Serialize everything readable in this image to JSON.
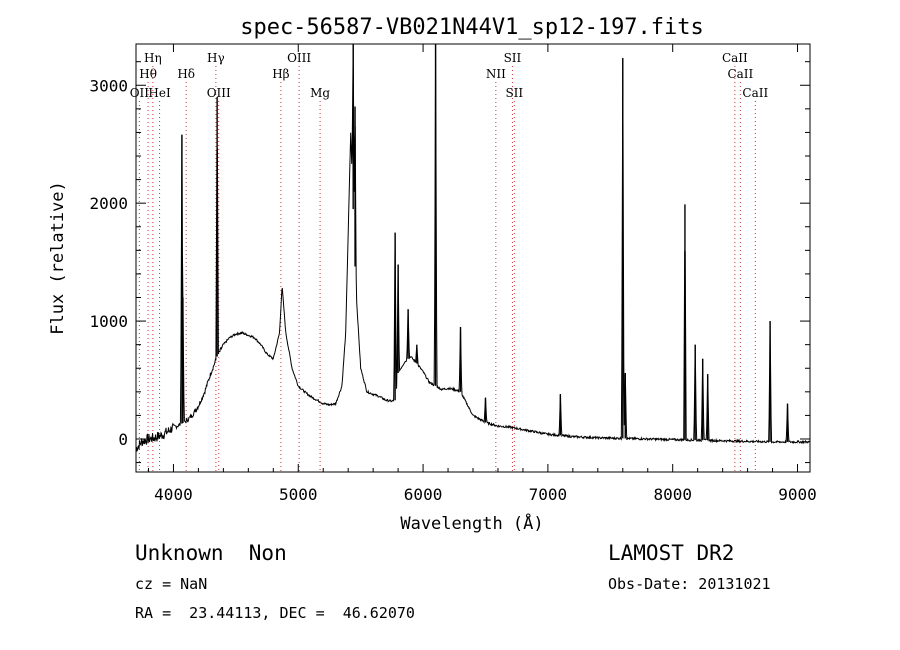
{
  "chart_data": {
    "type": "line",
    "title": "spec-56587-VB021N44V1_sp12-197.fits",
    "xlabel": "Wavelength (Å)",
    "ylabel": "Flux (relative)",
    "xlim": [
      3700,
      9100
    ],
    "ylim": [
      -280,
      3350
    ],
    "x_ticks": [
      4000,
      5000,
      6000,
      7000,
      8000,
      9000
    ],
    "y_ticks": [
      0,
      1000,
      2000,
      3000
    ],
    "grid": false,
    "line_color": "#000000",
    "marker_color": "#d03030",
    "spectrum_continuum": {
      "x": [
        3700,
        3750,
        3800,
        3850,
        3900,
        3950,
        4000,
        4050,
        4100,
        4150,
        4200,
        4250,
        4300,
        4350,
        4400,
        4450,
        4500,
        4550,
        4600,
        4650,
        4700,
        4750,
        4800,
        4850,
        4870,
        4900,
        4950,
        5000,
        5050,
        5100,
        5150,
        5200,
        5250,
        5300,
        5350,
        5380,
        5420,
        5460,
        5500,
        5550,
        5600,
        5650,
        5700,
        5750,
        5780,
        5800,
        5850,
        5900,
        5950,
        6000,
        6050,
        6100,
        6150,
        6200,
        6250,
        6300,
        6350,
        6400,
        6500,
        6600,
        6700,
        6800,
        6900,
        7000,
        7200,
        7400,
        7600,
        7800,
        8000,
        8200,
        8400,
        8600,
        8800,
        9000,
        9100
      ],
      "y": [
        -80,
        -20,
        0,
        10,
        30,
        60,
        100,
        120,
        150,
        200,
        280,
        400,
        560,
        700,
        800,
        860,
        890,
        900,
        880,
        860,
        800,
        720,
        680,
        900,
        1300,
        900,
        600,
        450,
        400,
        360,
        330,
        300,
        290,
        300,
        450,
        900,
        2600,
        1300,
        600,
        400,
        380,
        360,
        330,
        320,
        330,
        560,
        650,
        700,
        640,
        570,
        480,
        450,
        420,
        430,
        420,
        400,
        300,
        200,
        140,
        110,
        100,
        80,
        60,
        40,
        20,
        10,
        5,
        0,
        -5,
        -10,
        -15,
        -20,
        -25,
        -25,
        -25
      ]
    },
    "emission_peaks": [
      {
        "x": 4068,
        "y": 2580
      },
      {
        "x": 4076,
        "y": 1200
      },
      {
        "x": 4350,
        "y": 2900
      },
      {
        "x": 5440,
        "y": 3350
      },
      {
        "x": 5455,
        "y": 2820
      },
      {
        "x": 5776,
        "y": 1750
      },
      {
        "x": 5800,
        "y": 1480
      },
      {
        "x": 5880,
        "y": 1100
      },
      {
        "x": 5950,
        "y": 800
      },
      {
        "x": 6100,
        "y": 3350
      },
      {
        "x": 6300,
        "y": 950
      },
      {
        "x": 6500,
        "y": 350
      },
      {
        "x": 7100,
        "y": 380
      },
      {
        "x": 7600,
        "y": 3230
      },
      {
        "x": 7620,
        "y": 560
      },
      {
        "x": 8098,
        "y": 1990
      },
      {
        "x": 8180,
        "y": 800
      },
      {
        "x": 8240,
        "y": 680
      },
      {
        "x": 8280,
        "y": 550
      },
      {
        "x": 8780,
        "y": 1000
      },
      {
        "x": 8920,
        "y": 300
      }
    ],
    "line_markers": [
      {
        "label": "Hη",
        "x": 3835,
        "row": 0
      },
      {
        "label": "Hθ",
        "x": 3797,
        "row": 1
      },
      {
        "label": "OII",
        "x": 3727,
        "row": 2
      },
      {
        "label": "HeI",
        "x": 3889,
        "row": 2
      },
      {
        "label": "Hδ",
        "x": 4102,
        "row": 1
      },
      {
        "label": "Hγ",
        "x": 4340,
        "row": 0
      },
      {
        "label": "OIII",
        "x": 4363,
        "row": 2
      },
      {
        "label": "OIII",
        "x": 5007,
        "row": 0
      },
      {
        "label": "Hβ",
        "x": 4861,
        "row": 1
      },
      {
        "label": "Mg",
        "x": 5175,
        "row": 2
      },
      {
        "label": "SII",
        "x": 6716,
        "row": 0
      },
      {
        "label": "NII",
        "x": 6583,
        "row": 1
      },
      {
        "label": "SII",
        "x": 6731,
        "row": 2
      },
      {
        "label": "CaII",
        "x": 8498,
        "row": 0
      },
      {
        "label": "CaII",
        "x": 8542,
        "row": 1
      },
      {
        "label": "CaII",
        "x": 8662,
        "row": 2
      }
    ]
  },
  "info": {
    "class_text": "Unknown  Non",
    "survey": "LAMOST DR2",
    "cz": "cz = NaN",
    "obs_date": "Obs-Date: 20131021",
    "radec": "RA =  23.44113, DEC =  46.62070"
  }
}
